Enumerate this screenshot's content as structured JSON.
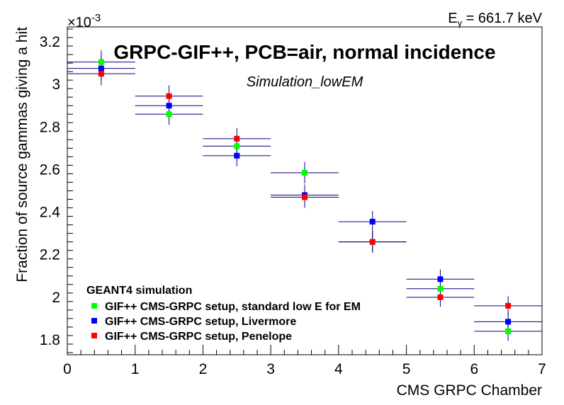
{
  "chart_data": {
    "type": "scatter",
    "title": "GRPC-GIF++, PCB=air, normal incidence",
    "subtitle": "Simulation_lowEM",
    "top_right_label": {
      "base": "E",
      "sub": "γ",
      "rest": " = 661.7 keV"
    },
    "xlabel": "CMS GRPC Chamber",
    "ylabel": "Fraction of source gammas giving a hit",
    "y_exponent": {
      "base": "×10",
      "exp": "-3"
    },
    "xlim": [
      0,
      7
    ],
    "ylim": [
      1.73,
      3.27
    ],
    "x_ticks": [
      0,
      1,
      2,
      3,
      4,
      5,
      6,
      7
    ],
    "x_tick_labels": [
      "0",
      "1",
      "2",
      "3",
      "4",
      "5",
      "6",
      "7"
    ],
    "y_ticks": [
      1.8,
      2.0,
      2.2,
      2.4,
      2.6,
      2.8,
      3.0,
      3.2
    ],
    "y_tick_labels": [
      "1.8",
      "2",
      "2.2",
      "2.4",
      "2.6",
      "2.8",
      "3",
      "3.2"
    ],
    "grid": false,
    "legend_title": "GEANT4 simulation",
    "legend_position": "bottom-left",
    "x": [
      0.5,
      1.5,
      2.5,
      3.5,
      4.5,
      5.5,
      6.5
    ],
    "x_err": 0.5,
    "series": [
      {
        "name": "GIF++ CMS-GRPC setup, standard low E for EM",
        "color": "#00ff00",
        "values": [
          3.105,
          2.86,
          2.71,
          2.585,
          2.26,
          2.04,
          1.84
        ],
        "errors": [
          0.055,
          0.05,
          0.05,
          0.05,
          0.05,
          0.045,
          0.045
        ]
      },
      {
        "name": "GIF++ CMS-GRPC setup, Livermore",
        "color": "#0000ff",
        "values": [
          3.075,
          2.9,
          2.665,
          2.48,
          2.355,
          2.085,
          1.885
        ],
        "errors": [
          0.055,
          0.05,
          0.05,
          0.05,
          0.05,
          0.045,
          0.045
        ]
      },
      {
        "name": "GIF++ CMS-GRPC setup, Penelope",
        "color": "#ff0000",
        "values": [
          3.05,
          2.945,
          2.745,
          2.47,
          2.26,
          2.0,
          1.96
        ],
        "errors": [
          0.055,
          0.05,
          0.05,
          0.05,
          0.05,
          0.045,
          0.045
        ]
      }
    ]
  }
}
